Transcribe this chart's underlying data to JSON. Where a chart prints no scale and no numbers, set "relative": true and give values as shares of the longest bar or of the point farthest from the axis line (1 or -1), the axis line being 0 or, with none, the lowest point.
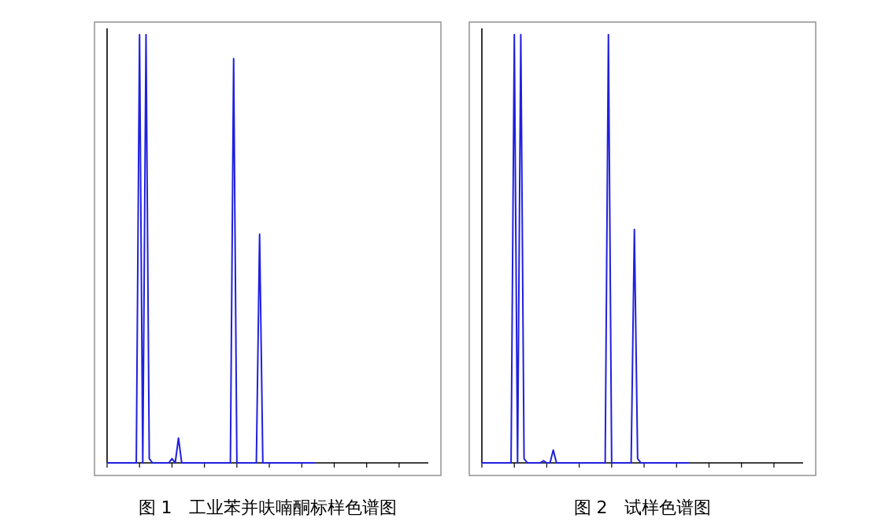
{
  "chart_data": [
    {
      "type": "line",
      "title": "图 1　工业苯并呋喃酮标样色谱图",
      "relative": true,
      "grid": false,
      "marker": "none",
      "line_style": "solid",
      "categories": [
        null,
        null,
        null,
        null,
        null,
        null,
        null,
        null,
        null,
        null,
        null,
        null,
        null,
        null,
        null,
        null,
        null,
        null,
        null,
        null,
        null,
        null,
        null,
        null,
        null,
        null,
        null,
        null,
        null,
        null,
        null,
        null,
        null,
        null,
        null,
        null,
        null,
        null,
        null,
        null,
        null,
        null,
        null,
        null,
        null,
        null,
        null,
        null,
        null,
        null,
        null,
        null,
        null,
        null,
        null,
        null,
        null,
        null,
        null,
        null,
        null,
        null,
        null,
        null,
        null,
        null,
        null,
        null,
        null,
        null,
        null,
        null,
        null,
        null,
        null,
        null,
        null,
        null,
        null,
        null,
        null,
        null,
        null,
        null,
        null,
        null,
        null,
        null,
        null,
        null,
        null,
        null,
        null,
        null,
        null,
        null,
        null,
        null,
        null,
        null
      ],
      "series": [
        {
          "color": "#2020e0",
          "values": [
            0,
            0,
            0,
            0,
            0,
            0,
            0,
            0,
            0,
            0,
            1,
            0,
            1,
            0.01,
            0,
            0,
            0,
            0,
            0,
            0,
            0.01,
            0,
            0.058,
            0,
            0,
            0,
            0,
            0,
            0,
            0,
            0,
            0,
            0,
            0,
            0,
            0,
            0,
            0,
            0,
            0.944,
            0,
            0,
            0,
            0,
            0,
            0,
            0,
            0.534,
            0,
            0,
            0,
            0,
            0,
            0,
            0,
            0,
            0,
            0,
            0,
            0,
            0,
            0,
            0,
            0,
            0,
            null,
            null,
            null,
            null,
            null,
            null,
            null,
            null,
            null,
            null,
            null,
            null,
            null,
            null,
            null,
            null,
            null,
            null,
            null,
            null,
            null,
            null,
            null,
            null,
            null,
            null,
            null,
            null,
            null,
            null,
            null,
            null,
            null,
            null,
            null
          ]
        }
      ]
    },
    {
      "type": "line",
      "title": "图 2　试样色谱图",
      "relative": true,
      "grid": false,
      "marker": "none",
      "line_style": "solid",
      "categories": [
        null,
        null,
        null,
        null,
        null,
        null,
        null,
        null,
        null,
        null,
        null,
        null,
        null,
        null,
        null,
        null,
        null,
        null,
        null,
        null,
        null,
        null,
        null,
        null,
        null,
        null,
        null,
        null,
        null,
        null,
        null,
        null,
        null,
        null,
        null,
        null,
        null,
        null,
        null,
        null,
        null,
        null,
        null,
        null,
        null,
        null,
        null,
        null,
        null,
        null,
        null,
        null,
        null,
        null,
        null,
        null,
        null,
        null,
        null,
        null,
        null,
        null,
        null,
        null,
        null,
        null,
        null,
        null,
        null,
        null,
        null,
        null,
        null,
        null,
        null,
        null,
        null,
        null,
        null,
        null,
        null,
        null,
        null,
        null,
        null,
        null,
        null,
        null,
        null,
        null,
        null,
        null,
        null,
        null,
        null,
        null,
        null,
        null,
        null,
        null
      ],
      "series": [
        {
          "color": "#2020e0",
          "values": [
            0,
            0,
            0,
            0,
            0,
            0,
            0,
            0,
            0,
            0,
            1,
            0,
            1,
            0.01,
            0,
            0,
            0,
            0,
            0,
            0.005,
            0,
            0,
            0.03,
            0,
            0,
            0,
            0,
            0,
            0,
            0,
            0,
            0,
            0,
            0,
            0,
            0,
            0,
            0,
            0,
            1,
            0,
            0,
            0,
            0,
            0,
            0,
            0,
            0.545,
            0.01,
            0,
            0,
            0,
            0,
            0,
            0,
            0,
            0,
            0,
            0,
            0,
            0,
            0,
            0,
            0,
            0,
            null,
            null,
            null,
            null,
            null,
            null,
            null,
            null,
            null,
            null,
            null,
            null,
            null,
            null,
            null,
            null,
            null,
            null,
            null,
            null,
            null,
            null,
            null,
            null,
            null,
            null,
            null,
            null,
            null,
            null,
            null,
            null,
            null,
            null,
            null
          ]
        }
      ]
    }
  ]
}
